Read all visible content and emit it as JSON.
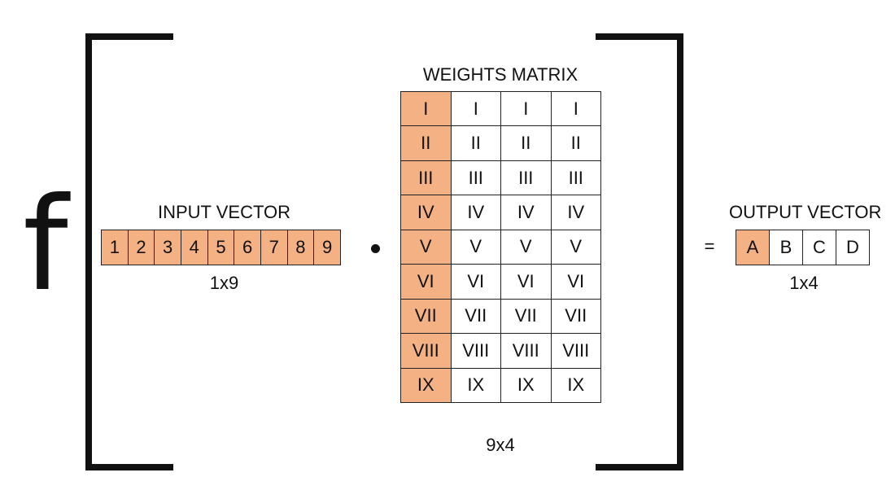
{
  "function_symbol": "f",
  "input_vector": {
    "title": "INPUT VECTOR",
    "cells": [
      "1",
      "2",
      "3",
      "4",
      "5",
      "6",
      "7",
      "8",
      "9"
    ],
    "dimension": "1x9"
  },
  "operator_dot": "dot-product",
  "weights_matrix": {
    "title": "WEIGHTS MATRIX",
    "rows": [
      [
        "I",
        "I",
        "I",
        "I"
      ],
      [
        "II",
        "II",
        "II",
        "II"
      ],
      [
        "III",
        "III",
        "III",
        "III"
      ],
      [
        "IV",
        "IV",
        "IV",
        "IV"
      ],
      [
        "V",
        "V",
        "V",
        "V"
      ],
      [
        "VI",
        "VI",
        "VI",
        "VI"
      ],
      [
        "VII",
        "VII",
        "VII",
        "VII"
      ],
      [
        "VIII",
        "VIII",
        "VIII",
        "VIII"
      ],
      [
        "IX",
        "IX",
        "IX",
        "IX"
      ]
    ],
    "highlighted_column": 0,
    "dimension": "9x4"
  },
  "equals_sign": "=",
  "output_vector": {
    "title": "OUTPUT VECTOR",
    "cells": [
      "A",
      "B",
      "C",
      "D"
    ],
    "highlighted_index": 0,
    "dimension": "1x4"
  },
  "colors": {
    "highlight": "#f4b183",
    "border": "#222222",
    "ink": "#111111"
  }
}
